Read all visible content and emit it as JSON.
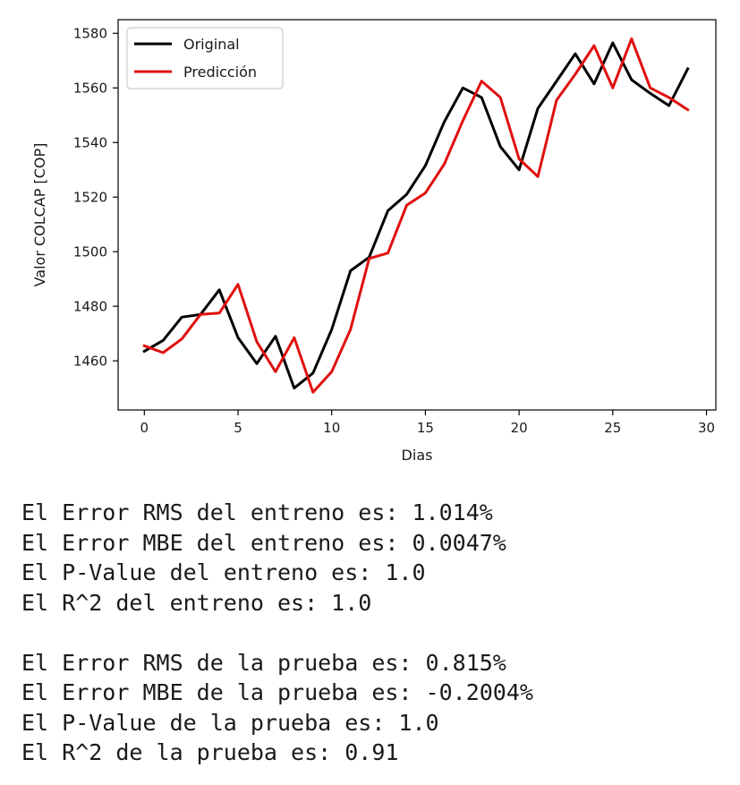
{
  "chart_data": {
    "type": "line",
    "title": "",
    "xlabel": "Dias",
    "ylabel": "Valor COLCAP [COP]",
    "xlim": [
      -1.4,
      30.5
    ],
    "ylim": [
      1442,
      1585
    ],
    "xticks": [
      0,
      5,
      10,
      15,
      20,
      25,
      30
    ],
    "yticks": [
      1460,
      1480,
      1500,
      1520,
      1540,
      1560,
      1580
    ],
    "grid": false,
    "legend_position": "top-left",
    "x": [
      0,
      1,
      2,
      3,
      4,
      5,
      6,
      7,
      8,
      9,
      10,
      11,
      12,
      13,
      14,
      15,
      16,
      17,
      18,
      19,
      20,
      21,
      22,
      23,
      24,
      25,
      26,
      27,
      28,
      29
    ],
    "series": [
      {
        "name": "Original",
        "color": "#000000",
        "values": [
          1463.5,
          1467.5,
          1476,
          1477,
          1486,
          1468.5,
          1459,
          1469,
          1450,
          1455.5,
          1471.5,
          1493,
          1498,
          1515,
          1521,
          1531.5,
          1547.5,
          1560,
          1556.5,
          1538.5,
          1530,
          1552.5,
          1562.5,
          1572.5,
          1561.5,
          1576.5,
          1563,
          1558,
          1553.5,
          1567
        ]
      },
      {
        "name": "Predicción",
        "color": "#e01010",
        "values": [
          1465.5,
          1463,
          1468,
          1477,
          1477.5,
          1488,
          1467,
          1456,
          1468.5,
          1448.5,
          1456,
          1471.5,
          1497.5,
          1499.5,
          1517,
          1521.5,
          1532,
          1548,
          1562.5,
          1556.5,
          1534,
          1527.5,
          1555.5,
          1565,
          1575.5,
          1560,
          1578,
          1560,
          1556.5,
          1552
        ]
      }
    ]
  },
  "stats": {
    "lines": [
      "El Error RMS del entreno es: 1.014%",
      "El Error MBE del entreno es: 0.0047%",
      "El P-Value del entreno es: 1.0",
      "El R^2 del entreno es: 1.0",
      "",
      "El Error RMS de la prueba es: 0.815%",
      "El Error MBE de la prueba es: -0.2004%",
      "El P-Value de la prueba es: 1.0",
      "El R^2 de la prueba es: 0.91"
    ]
  }
}
